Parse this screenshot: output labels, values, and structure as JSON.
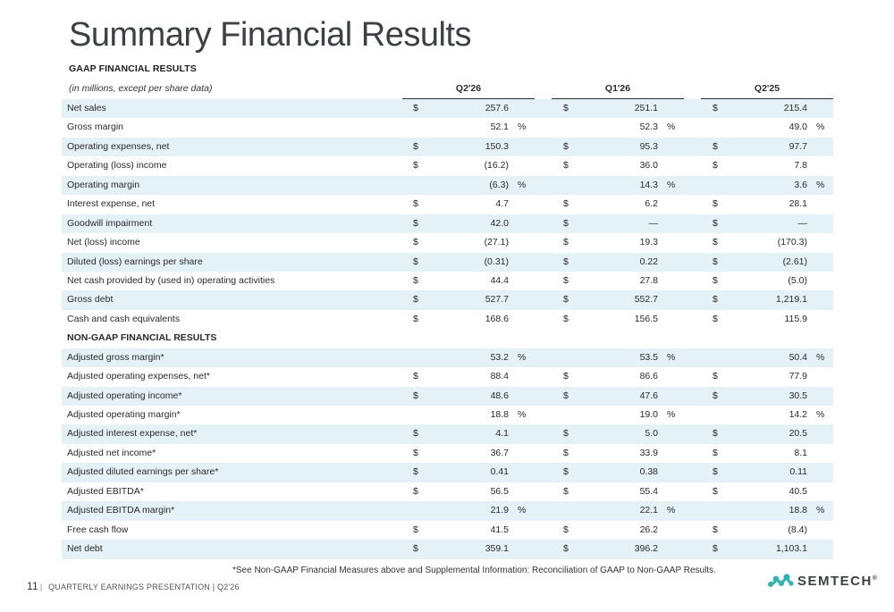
{
  "title": "Summary Financial Results",
  "gaap_label": "GAAP FINANCIAL RESULTS",
  "units_note": "(in millions, except per share data)",
  "columns": [
    "Q2'26",
    "Q1'26",
    "Q2'25"
  ],
  "rows": [
    {
      "label": "Net sales",
      "cells": [
        {
          "cur": "$",
          "val": "257.6",
          "pct": ""
        },
        {
          "cur": "$",
          "val": "251.1",
          "pct": ""
        },
        {
          "cur": "$",
          "val": "215.4",
          "pct": ""
        }
      ]
    },
    {
      "label": "Gross margin",
      "cells": [
        {
          "cur": "",
          "val": "52.1",
          "pct": "%"
        },
        {
          "cur": "",
          "val": "52.3",
          "pct": "%"
        },
        {
          "cur": "",
          "val": "49.0",
          "pct": "%"
        }
      ]
    },
    {
      "label": "Operating expenses, net",
      "cells": [
        {
          "cur": "$",
          "val": "150.3",
          "pct": ""
        },
        {
          "cur": "$",
          "val": "95.3",
          "pct": ""
        },
        {
          "cur": "$",
          "val": "97.7",
          "pct": ""
        }
      ]
    },
    {
      "label": "Operating (loss) income",
      "cells": [
        {
          "cur": "$",
          "val": "(16.2)",
          "pct": ""
        },
        {
          "cur": "$",
          "val": "36.0",
          "pct": ""
        },
        {
          "cur": "$",
          "val": "7.8",
          "pct": ""
        }
      ]
    },
    {
      "label": "Operating margin",
      "cells": [
        {
          "cur": "",
          "val": "(6.3)",
          "pct": "%"
        },
        {
          "cur": "",
          "val": "14.3",
          "pct": "%"
        },
        {
          "cur": "",
          "val": "3.6",
          "pct": "%"
        }
      ]
    },
    {
      "label": "Interest expense, net",
      "cells": [
        {
          "cur": "$",
          "val": "4.7",
          "pct": ""
        },
        {
          "cur": "$",
          "val": "6.2",
          "pct": ""
        },
        {
          "cur": "$",
          "val": "28.1",
          "pct": ""
        }
      ]
    },
    {
      "label": "Goodwill impairment",
      "cells": [
        {
          "cur": "$",
          "val": "42.0",
          "pct": ""
        },
        {
          "cur": "$",
          "val": "—",
          "pct": ""
        },
        {
          "cur": "$",
          "val": "—",
          "pct": ""
        }
      ]
    },
    {
      "label": "Net (loss) income",
      "cells": [
        {
          "cur": "$",
          "val": "(27.1)",
          "pct": ""
        },
        {
          "cur": "$",
          "val": "19.3",
          "pct": ""
        },
        {
          "cur": "$",
          "val": "(170.3)",
          "pct": ""
        }
      ]
    },
    {
      "label": "Diluted (loss) earnings per share",
      "cells": [
        {
          "cur": "$",
          "val": "(0.31)",
          "pct": ""
        },
        {
          "cur": "$",
          "val": "0.22",
          "pct": ""
        },
        {
          "cur": "$",
          "val": "(2.61)",
          "pct": ""
        }
      ]
    },
    {
      "label": "Net cash provided by (used in) operating activities",
      "cells": [
        {
          "cur": "$",
          "val": "44.4",
          "pct": ""
        },
        {
          "cur": "$",
          "val": "27.8",
          "pct": ""
        },
        {
          "cur": "$",
          "val": "(5.0)",
          "pct": ""
        }
      ]
    },
    {
      "label": "Gross debt",
      "cells": [
        {
          "cur": "$",
          "val": "527.7",
          "pct": ""
        },
        {
          "cur": "$",
          "val": "552.7",
          "pct": ""
        },
        {
          "cur": "$",
          "val": "1,219.1",
          "pct": ""
        }
      ]
    },
    {
      "label": "Cash and cash equivalents",
      "cells": [
        {
          "cur": "$",
          "val": "168.6",
          "pct": ""
        },
        {
          "cur": "$",
          "val": "156.5",
          "pct": ""
        },
        {
          "cur": "$",
          "val": "115.9",
          "pct": ""
        }
      ]
    },
    {
      "label": "NON-GAAP FINANCIAL RESULTS",
      "section": true,
      "cells": []
    },
    {
      "label": "Adjusted gross margin*",
      "cells": [
        {
          "cur": "",
          "val": "53.2",
          "pct": "%"
        },
        {
          "cur": "",
          "val": "53.5",
          "pct": "%"
        },
        {
          "cur": "",
          "val": "50.4",
          "pct": "%"
        }
      ]
    },
    {
      "label": "Adjusted operating expenses, net*",
      "cells": [
        {
          "cur": "$",
          "val": "88.4",
          "pct": ""
        },
        {
          "cur": "$",
          "val": "86.6",
          "pct": ""
        },
        {
          "cur": "$",
          "val": "77.9",
          "pct": ""
        }
      ]
    },
    {
      "label": "Adjusted operating income*",
      "cells": [
        {
          "cur": "$",
          "val": "48.6",
          "pct": ""
        },
        {
          "cur": "$",
          "val": "47.6",
          "pct": ""
        },
        {
          "cur": "$",
          "val": "30.5",
          "pct": ""
        }
      ]
    },
    {
      "label": "Adjusted operating margin*",
      "cells": [
        {
          "cur": "",
          "val": "18.8",
          "pct": "%"
        },
        {
          "cur": "",
          "val": "19.0",
          "pct": "%"
        },
        {
          "cur": "",
          "val": "14.2",
          "pct": "%"
        }
      ]
    },
    {
      "label": "Adjusted interest expense, net*",
      "cells": [
        {
          "cur": "$",
          "val": "4.1",
          "pct": ""
        },
        {
          "cur": "$",
          "val": "5.0",
          "pct": ""
        },
        {
          "cur": "$",
          "val": "20.5",
          "pct": ""
        }
      ]
    },
    {
      "label": "Adjusted net income*",
      "cells": [
        {
          "cur": "$",
          "val": "36.7",
          "pct": ""
        },
        {
          "cur": "$",
          "val": "33.9",
          "pct": ""
        },
        {
          "cur": "$",
          "val": "8.1",
          "pct": ""
        }
      ]
    },
    {
      "label": "Adjusted diluted earnings per share*",
      "cells": [
        {
          "cur": "$",
          "val": "0.41",
          "pct": ""
        },
        {
          "cur": "$",
          "val": "0.38",
          "pct": ""
        },
        {
          "cur": "$",
          "val": "0.11",
          "pct": ""
        }
      ]
    },
    {
      "label": "Adjusted EBITDA*",
      "cells": [
        {
          "cur": "$",
          "val": "56.5",
          "pct": ""
        },
        {
          "cur": "$",
          "val": "55.4",
          "pct": ""
        },
        {
          "cur": "$",
          "val": "40.5",
          "pct": ""
        }
      ]
    },
    {
      "label": "Adjusted EBITDA margin*",
      "cells": [
        {
          "cur": "",
          "val": "21.9",
          "pct": "%"
        },
        {
          "cur": "",
          "val": "22.1",
          "pct": "%"
        },
        {
          "cur": "",
          "val": "18.8",
          "pct": "%"
        }
      ]
    },
    {
      "label": "Free cash flow",
      "cells": [
        {
          "cur": "$",
          "val": "41.5",
          "pct": ""
        },
        {
          "cur": "$",
          "val": "26.2",
          "pct": ""
        },
        {
          "cur": "$",
          "val": "(8.4)",
          "pct": ""
        }
      ]
    },
    {
      "label": "Net debt",
      "cells": [
        {
          "cur": "$",
          "val": "359.1",
          "pct": ""
        },
        {
          "cur": "$",
          "val": "396.2",
          "pct": ""
        },
        {
          "cur": "$",
          "val": "1,103.1",
          "pct": ""
        }
      ]
    }
  ],
  "footnote": "*See Non-GAAP Financial Measures above and Supplemental Information: Reconciliation of GAAP to Non-GAAP Results.",
  "footer": {
    "page": "11",
    "separator": "|",
    "text": "QUARTERLY EARNINGS PRESENTATION | Q2'26"
  },
  "logo": {
    "text": "SEMTECH",
    "mark": "®",
    "color": "#2bb6b4"
  },
  "colors": {
    "row_shade": "#e4f1f6",
    "title": "#3d4044"
  }
}
